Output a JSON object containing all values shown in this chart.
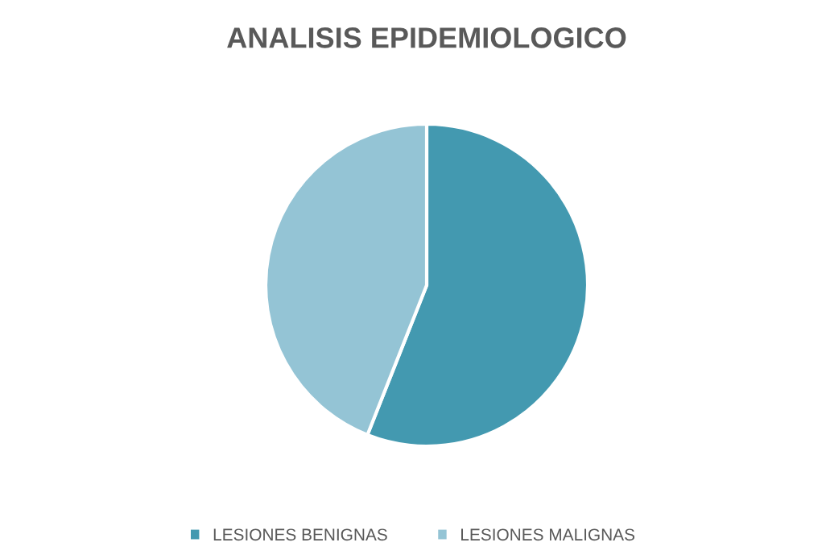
{
  "chart_data": {
    "type": "pie",
    "title": "ANALISIS EPIDEMIOLOGICO",
    "categories": [
      "LESIONES BENIGNAS",
      "LESIONES MALIGNAS"
    ],
    "values": [
      56,
      44
    ],
    "colors": [
      "#4399b0",
      "#94c4d5"
    ],
    "legend": "bottom"
  }
}
